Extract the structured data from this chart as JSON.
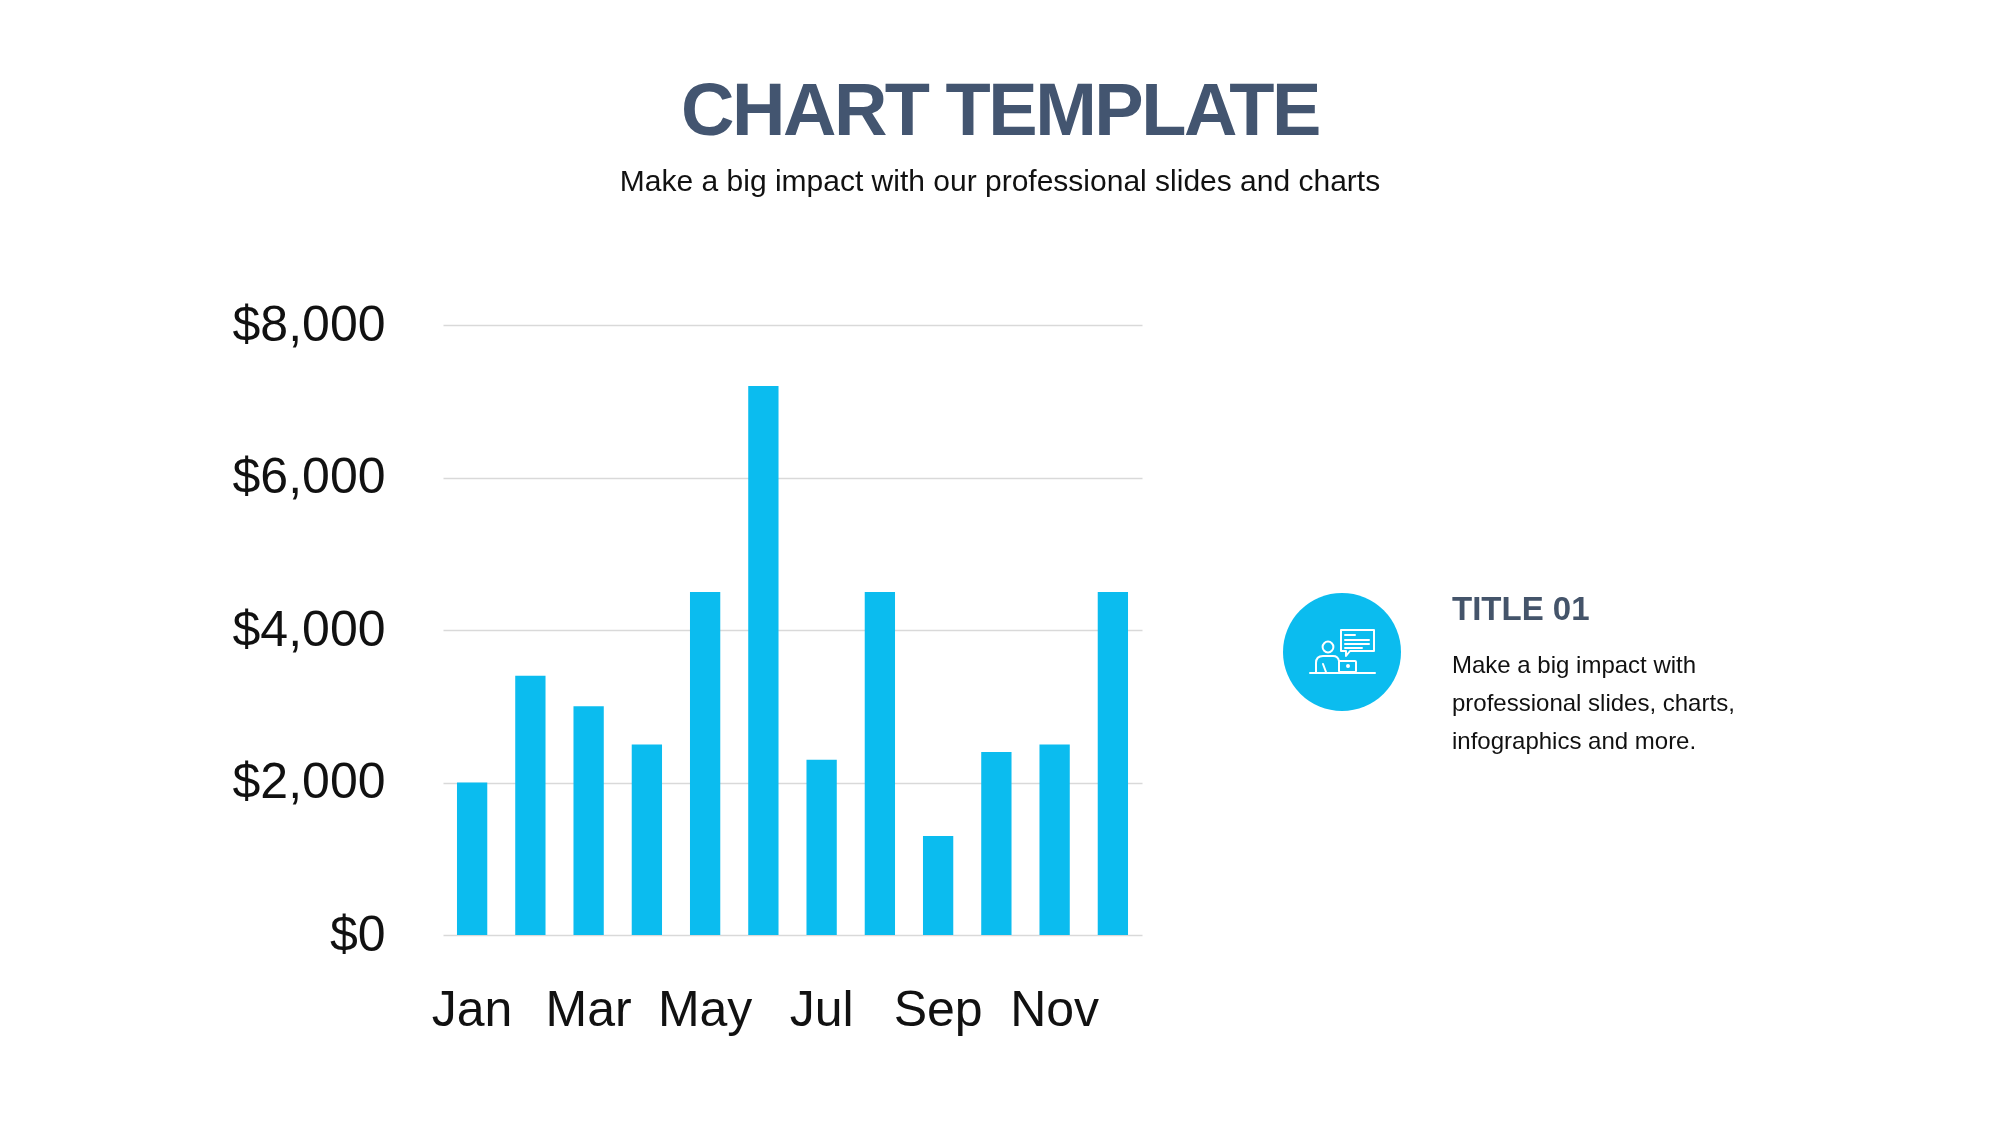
{
  "chart_data": [
    {
      "type": "bar",
      "title": "CHART TEMPLATE",
      "subtitle": "Make a big impact with our professional slides and charts",
      "categories": [
        "Jan",
        null,
        "Mar",
        null,
        "May",
        null,
        "Jul",
        null,
        "Sep",
        null,
        "Nov",
        null
      ],
      "values": [
        2000,
        3400,
        3000,
        2500,
        4500,
        7200,
        2300,
        4500,
        1300,
        2400,
        2500,
        4500
      ],
      "color": "#0bbcef",
      "ylim": [
        0,
        8000
      ],
      "yticks": [
        {
          "value": 0,
          "label": "$0"
        },
        {
          "value": 2000,
          "label": "$2,000"
        },
        {
          "value": 4000,
          "label": "$4,000"
        },
        {
          "value": 6000,
          "label": "$6,000"
        },
        {
          "value": 8000,
          "label": "$8,000"
        }
      ],
      "grid": "y"
    },
    {
      "type": "other",
      "title": "TITLE 01",
      "annotations": [
        "Make a big impact with professional slides, charts, infographics and more."
      ]
    }
  ]
}
